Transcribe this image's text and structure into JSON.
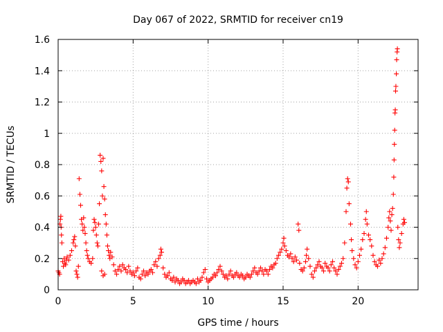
{
  "chart_data": {
    "type": "scatter",
    "title": "Day 067 of 2022, SRMTID for receiver cn19",
    "xlabel": "GPS time / hours",
    "ylabel": "SRMTID / TECUs",
    "xlim": [
      0,
      24
    ],
    "ylim": [
      0,
      1.6
    ],
    "xticks": [
      0,
      5,
      10,
      15,
      20
    ],
    "yticks": [
      0,
      0.2,
      0.4,
      0.6,
      0.8,
      1.0,
      1.2,
      1.4,
      1.6
    ],
    "xtick_labels": [
      "0",
      "5",
      "10",
      "15",
      "20"
    ],
    "ytick_labels": [
      "0",
      "0.2",
      "0.4",
      "0.6",
      "0.8",
      "1",
      "1.2",
      "1.4",
      "1.6"
    ],
    "grid": true,
    "legend": "none",
    "marker": "+",
    "color": "#ff0000",
    "series": [
      {
        "name": "cn19",
        "points": [
          [
            0.0,
            0.12
          ],
          [
            0.05,
            0.11
          ],
          [
            0.1,
            0.1
          ],
          [
            0.12,
            0.42
          ],
          [
            0.15,
            0.45
          ],
          [
            0.18,
            0.47
          ],
          [
            0.2,
            0.4
          ],
          [
            0.22,
            0.35
          ],
          [
            0.25,
            0.3
          ],
          [
            0.3,
            0.18
          ],
          [
            0.35,
            0.15
          ],
          [
            0.4,
            0.2
          ],
          [
            0.45,
            0.17
          ],
          [
            0.5,
            0.16
          ],
          [
            0.55,
            0.19
          ],
          [
            0.6,
            0.21
          ],
          [
            0.7,
            0.19
          ],
          [
            0.8,
            0.22
          ],
          [
            0.9,
            0.25
          ],
          [
            1.0,
            0.3
          ],
          [
            1.05,
            0.32
          ],
          [
            1.1,
            0.34
          ],
          [
            1.15,
            0.28
          ],
          [
            1.2,
            0.12
          ],
          [
            1.25,
            0.1
          ],
          [
            1.3,
            0.08
          ],
          [
            1.35,
            0.15
          ],
          [
            1.4,
            0.71
          ],
          [
            1.45,
            0.61
          ],
          [
            1.5,
            0.54
          ],
          [
            1.55,
            0.45
          ],
          [
            1.6,
            0.42
          ],
          [
            1.65,
            0.38
          ],
          [
            1.7,
            0.46
          ],
          [
            1.75,
            0.4
          ],
          [
            1.8,
            0.36
          ],
          [
            1.85,
            0.3
          ],
          [
            1.9,
            0.25
          ],
          [
            1.95,
            0.22
          ],
          [
            2.0,
            0.2
          ],
          [
            2.1,
            0.18
          ],
          [
            2.2,
            0.17
          ],
          [
            2.3,
            0.2
          ],
          [
            2.35,
            0.38
          ],
          [
            2.4,
            0.45
          ],
          [
            2.45,
            0.43
          ],
          [
            2.5,
            0.4
          ],
          [
            2.55,
            0.35
          ],
          [
            2.6,
            0.3
          ],
          [
            2.65,
            0.28
          ],
          [
            2.7,
            0.42
          ],
          [
            2.75,
            0.55
          ],
          [
            2.8,
            0.86
          ],
          [
            2.85,
            0.82
          ],
          [
            2.9,
            0.76
          ],
          [
            2.95,
            0.6
          ],
          [
            3.0,
            0.84
          ],
          [
            3.05,
            0.66
          ],
          [
            3.1,
            0.58
          ],
          [
            3.15,
            0.48
          ],
          [
            3.2,
            0.42
          ],
          [
            3.25,
            0.35
          ],
          [
            3.3,
            0.28
          ],
          [
            3.35,
            0.25
          ],
          [
            3.4,
            0.22
          ],
          [
            3.45,
            0.2
          ],
          [
            3.5,
            0.24
          ],
          [
            3.6,
            0.21
          ],
          [
            2.9,
            0.12
          ],
          [
            3.0,
            0.09
          ],
          [
            3.1,
            0.1
          ],
          [
            3.7,
            0.16
          ],
          [
            3.8,
            0.12
          ],
          [
            3.9,
            0.1
          ],
          [
            4.0,
            0.13
          ],
          [
            4.1,
            0.15
          ],
          [
            4.2,
            0.12
          ],
          [
            4.3,
            0.16
          ],
          [
            4.4,
            0.14
          ],
          [
            4.5,
            0.13
          ],
          [
            4.6,
            0.11
          ],
          [
            4.7,
            0.15
          ],
          [
            4.8,
            0.12
          ],
          [
            4.9,
            0.1
          ],
          [
            5.0,
            0.11
          ],
          [
            5.1,
            0.09
          ],
          [
            5.2,
            0.12
          ],
          [
            5.3,
            0.14
          ],
          [
            5.4,
            0.08
          ],
          [
            5.5,
            0.07
          ],
          [
            5.6,
            0.1
          ],
          [
            5.7,
            0.12
          ],
          [
            5.8,
            0.09
          ],
          [
            5.9,
            0.11
          ],
          [
            6.0,
            0.1
          ],
          [
            6.1,
            0.12
          ],
          [
            6.2,
            0.13
          ],
          [
            6.3,
            0.11
          ],
          [
            6.4,
            0.16
          ],
          [
            6.5,
            0.18
          ],
          [
            6.6,
            0.15
          ],
          [
            6.7,
            0.2
          ],
          [
            6.8,
            0.22
          ],
          [
            6.85,
            0.26
          ],
          [
            6.9,
            0.24
          ],
          [
            7.0,
            0.14
          ],
          [
            7.1,
            0.1
          ],
          [
            7.2,
            0.08
          ],
          [
            7.3,
            0.09
          ],
          [
            7.4,
            0.11
          ],
          [
            7.5,
            0.07
          ],
          [
            7.6,
            0.06
          ],
          [
            7.7,
            0.08
          ],
          [
            7.8,
            0.05
          ],
          [
            7.9,
            0.07
          ],
          [
            8.0,
            0.06
          ],
          [
            8.1,
            0.04
          ],
          [
            8.2,
            0.05
          ],
          [
            8.3,
            0.07
          ],
          [
            8.4,
            0.06
          ],
          [
            8.5,
            0.04
          ],
          [
            8.6,
            0.05
          ],
          [
            8.7,
            0.06
          ],
          [
            8.8,
            0.04
          ],
          [
            8.9,
            0.05
          ],
          [
            9.0,
            0.06
          ],
          [
            9.1,
            0.05
          ],
          [
            9.2,
            0.04
          ],
          [
            9.3,
            0.07
          ],
          [
            9.4,
            0.05
          ],
          [
            9.5,
            0.06
          ],
          [
            9.6,
            0.08
          ],
          [
            9.7,
            0.11
          ],
          [
            9.8,
            0.13
          ],
          [
            9.9,
            0.07
          ],
          [
            10.0,
            0.05
          ],
          [
            10.1,
            0.06
          ],
          [
            10.2,
            0.07
          ],
          [
            10.3,
            0.08
          ],
          [
            10.4,
            0.1
          ],
          [
            10.5,
            0.09
          ],
          [
            10.6,
            0.11
          ],
          [
            10.7,
            0.13
          ],
          [
            10.8,
            0.15
          ],
          [
            10.9,
            0.12
          ],
          [
            11.0,
            0.1
          ],
          [
            11.1,
            0.08
          ],
          [
            11.2,
            0.09
          ],
          [
            11.3,
            0.07
          ],
          [
            11.4,
            0.1
          ],
          [
            11.5,
            0.12
          ],
          [
            11.6,
            0.09
          ],
          [
            11.7,
            0.08
          ],
          [
            11.8,
            0.1
          ],
          [
            11.9,
            0.11
          ],
          [
            12.0,
            0.09
          ],
          [
            12.1,
            0.08
          ],
          [
            12.2,
            0.1
          ],
          [
            12.3,
            0.09
          ],
          [
            12.4,
            0.07
          ],
          [
            12.5,
            0.08
          ],
          [
            12.6,
            0.1
          ],
          [
            12.7,
            0.09
          ],
          [
            12.8,
            0.08
          ],
          [
            12.9,
            0.1
          ],
          [
            13.0,
            0.12
          ],
          [
            13.1,
            0.14
          ],
          [
            13.2,
            0.11
          ],
          [
            13.3,
            0.1
          ],
          [
            13.4,
            0.12
          ],
          [
            13.5,
            0.14
          ],
          [
            13.6,
            0.12
          ],
          [
            13.7,
            0.1
          ],
          [
            13.8,
            0.13
          ],
          [
            13.9,
            0.12
          ],
          [
            14.0,
            0.1
          ],
          [
            14.1,
            0.13
          ],
          [
            14.2,
            0.15
          ],
          [
            14.3,
            0.14
          ],
          [
            14.4,
            0.16
          ],
          [
            14.5,
            0.17
          ],
          [
            14.6,
            0.2
          ],
          [
            14.7,
            0.22
          ],
          [
            14.8,
            0.24
          ],
          [
            14.9,
            0.26
          ],
          [
            15.0,
            0.3
          ],
          [
            15.05,
            0.33
          ],
          [
            15.1,
            0.28
          ],
          [
            15.2,
            0.25
          ],
          [
            15.3,
            0.22
          ],
          [
            15.4,
            0.21
          ],
          [
            15.5,
            0.23
          ],
          [
            15.6,
            0.2
          ],
          [
            15.7,
            0.18
          ],
          [
            15.8,
            0.21
          ],
          [
            15.9,
            0.19
          ],
          [
            16.0,
            0.42
          ],
          [
            16.05,
            0.38
          ],
          [
            16.1,
            0.17
          ],
          [
            16.2,
            0.13
          ],
          [
            16.3,
            0.12
          ],
          [
            16.4,
            0.14
          ],
          [
            16.5,
            0.18
          ],
          [
            16.55,
            0.22
          ],
          [
            16.6,
            0.26
          ],
          [
            16.7,
            0.2
          ],
          [
            16.8,
            0.15
          ],
          [
            16.9,
            0.1
          ],
          [
            17.0,
            0.08
          ],
          [
            17.1,
            0.12
          ],
          [
            17.2,
            0.14
          ],
          [
            17.3,
            0.16
          ],
          [
            17.4,
            0.18
          ],
          [
            17.5,
            0.15
          ],
          [
            17.6,
            0.14
          ],
          [
            17.7,
            0.12
          ],
          [
            17.8,
            0.17
          ],
          [
            17.9,
            0.15
          ],
          [
            18.0,
            0.14
          ],
          [
            18.1,
            0.12
          ],
          [
            18.2,
            0.16
          ],
          [
            18.3,
            0.18
          ],
          [
            18.4,
            0.14
          ],
          [
            18.5,
            0.12
          ],
          [
            18.6,
            0.1
          ],
          [
            18.7,
            0.13
          ],
          [
            18.8,
            0.15
          ],
          [
            18.9,
            0.17
          ],
          [
            19.0,
            0.2
          ],
          [
            19.1,
            0.3
          ],
          [
            19.2,
            0.5
          ],
          [
            19.25,
            0.65
          ],
          [
            19.3,
            0.71
          ],
          [
            19.35,
            0.69
          ],
          [
            19.4,
            0.55
          ],
          [
            19.5,
            0.42
          ],
          [
            19.55,
            0.32
          ],
          [
            19.6,
            0.25
          ],
          [
            19.7,
            0.2
          ],
          [
            19.8,
            0.16
          ],
          [
            19.9,
            0.14
          ],
          [
            20.0,
            0.18
          ],
          [
            20.1,
            0.22
          ],
          [
            20.2,
            0.26
          ],
          [
            20.3,
            0.32
          ],
          [
            20.4,
            0.36
          ],
          [
            20.5,
            0.45
          ],
          [
            20.55,
            0.5
          ],
          [
            20.6,
            0.42
          ],
          [
            20.7,
            0.35
          ],
          [
            20.8,
            0.32
          ],
          [
            20.9,
            0.28
          ],
          [
            21.0,
            0.22
          ],
          [
            21.1,
            0.18
          ],
          [
            21.2,
            0.16
          ],
          [
            21.3,
            0.15
          ],
          [
            21.4,
            0.19
          ],
          [
            21.5,
            0.17
          ],
          [
            21.6,
            0.2
          ],
          [
            21.7,
            0.23
          ],
          [
            21.8,
            0.27
          ],
          [
            21.9,
            0.33
          ],
          [
            22.0,
            0.4
          ],
          [
            22.05,
            0.46
          ],
          [
            22.1,
            0.5
          ],
          [
            22.15,
            0.44
          ],
          [
            22.2,
            0.38
          ],
          [
            22.25,
            0.48
          ],
          [
            22.3,
            0.52
          ],
          [
            22.35,
            0.61
          ],
          [
            22.38,
            0.72
          ],
          [
            22.4,
            0.83
          ],
          [
            22.42,
            0.93
          ],
          [
            22.44,
            1.02
          ],
          [
            22.46,
            1.13
          ],
          [
            22.48,
            1.15
          ],
          [
            22.5,
            1.27
          ],
          [
            22.52,
            1.3
          ],
          [
            22.55,
            1.38
          ],
          [
            22.57,
            1.47
          ],
          [
            22.6,
            1.52
          ],
          [
            22.62,
            1.54
          ],
          [
            22.65,
            0.4
          ],
          [
            22.7,
            0.32
          ],
          [
            22.75,
            0.27
          ],
          [
            22.8,
            0.3
          ],
          [
            22.9,
            0.36
          ],
          [
            23.0,
            0.42
          ],
          [
            23.05,
            0.45
          ],
          [
            23.1,
            0.43
          ]
        ]
      }
    ]
  }
}
